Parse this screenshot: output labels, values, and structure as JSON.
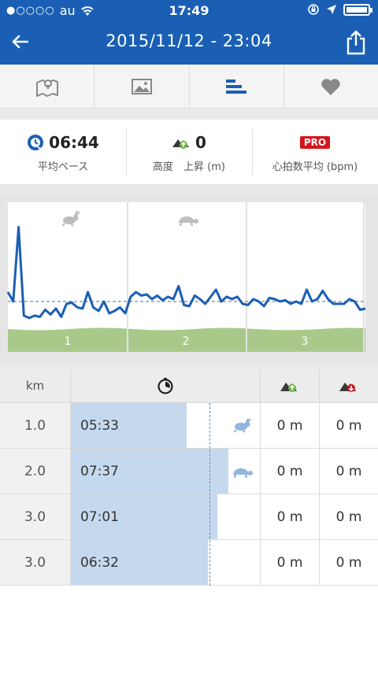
{
  "status": {
    "carrier": "au",
    "signal": "●○○○○",
    "time": "17:49"
  },
  "header": {
    "title": "2015/11/12 - 23:04"
  },
  "tabs": [
    {
      "name": "map"
    },
    {
      "name": "photos"
    },
    {
      "name": "splits"
    },
    {
      "name": "likes"
    }
  ],
  "stats": {
    "pace": {
      "value": "06:44",
      "label": "平均ペース"
    },
    "elevation": {
      "value": "0",
      "label": "高度　上昇 (m)"
    },
    "heartrate": {
      "badge": "PRO",
      "label": "心拍数平均 (bpm)"
    }
  },
  "chart": {
    "segment_labels": [
      "1",
      "2",
      "3"
    ]
  },
  "chart_data": {
    "type": "line",
    "series": [
      {
        "values": [
          30,
          22,
          85,
          10,
          8,
          10,
          9,
          15,
          11,
          16,
          9,
          20,
          21,
          17,
          16,
          30,
          17,
          14,
          22,
          12,
          14,
          17,
          12,
          26,
          30,
          27,
          28,
          24,
          27,
          23,
          26,
          24,
          35,
          19,
          18,
          27,
          24,
          20,
          26,
          32,
          22,
          26,
          24,
          26,
          20,
          19,
          24,
          22,
          18,
          25,
          24,
          22,
          23,
          20,
          22,
          20,
          32,
          22,
          24,
          31,
          24,
          20,
          20,
          20,
          24,
          22,
          15,
          16
        ]
      }
    ],
    "average": 22
  },
  "table": {
    "headers": {
      "km": "km"
    },
    "rows": [
      {
        "km": "1.0",
        "pace": "05:33",
        "up": "0 m",
        "down": "0 m",
        "pace_fraction": 0.61,
        "marker": "fast"
      },
      {
        "km": "2.0",
        "pace": "07:37",
        "up": "0 m",
        "down": "0 m",
        "pace_fraction": 0.83,
        "marker": "slow"
      },
      {
        "km": "3.0",
        "pace": "07:01",
        "up": "0 m",
        "down": "0 m",
        "pace_fraction": 0.77,
        "marker": ""
      },
      {
        "km": "3.0",
        "pace": "06:32",
        "up": "0 m",
        "down": "0 m",
        "pace_fraction": 0.72,
        "marker": ""
      }
    ]
  },
  "colors": {
    "brand": "#1a5fb4",
    "line": "#1a5fb4",
    "green": "#a9c98b",
    "bar": "#c5d9ee"
  }
}
